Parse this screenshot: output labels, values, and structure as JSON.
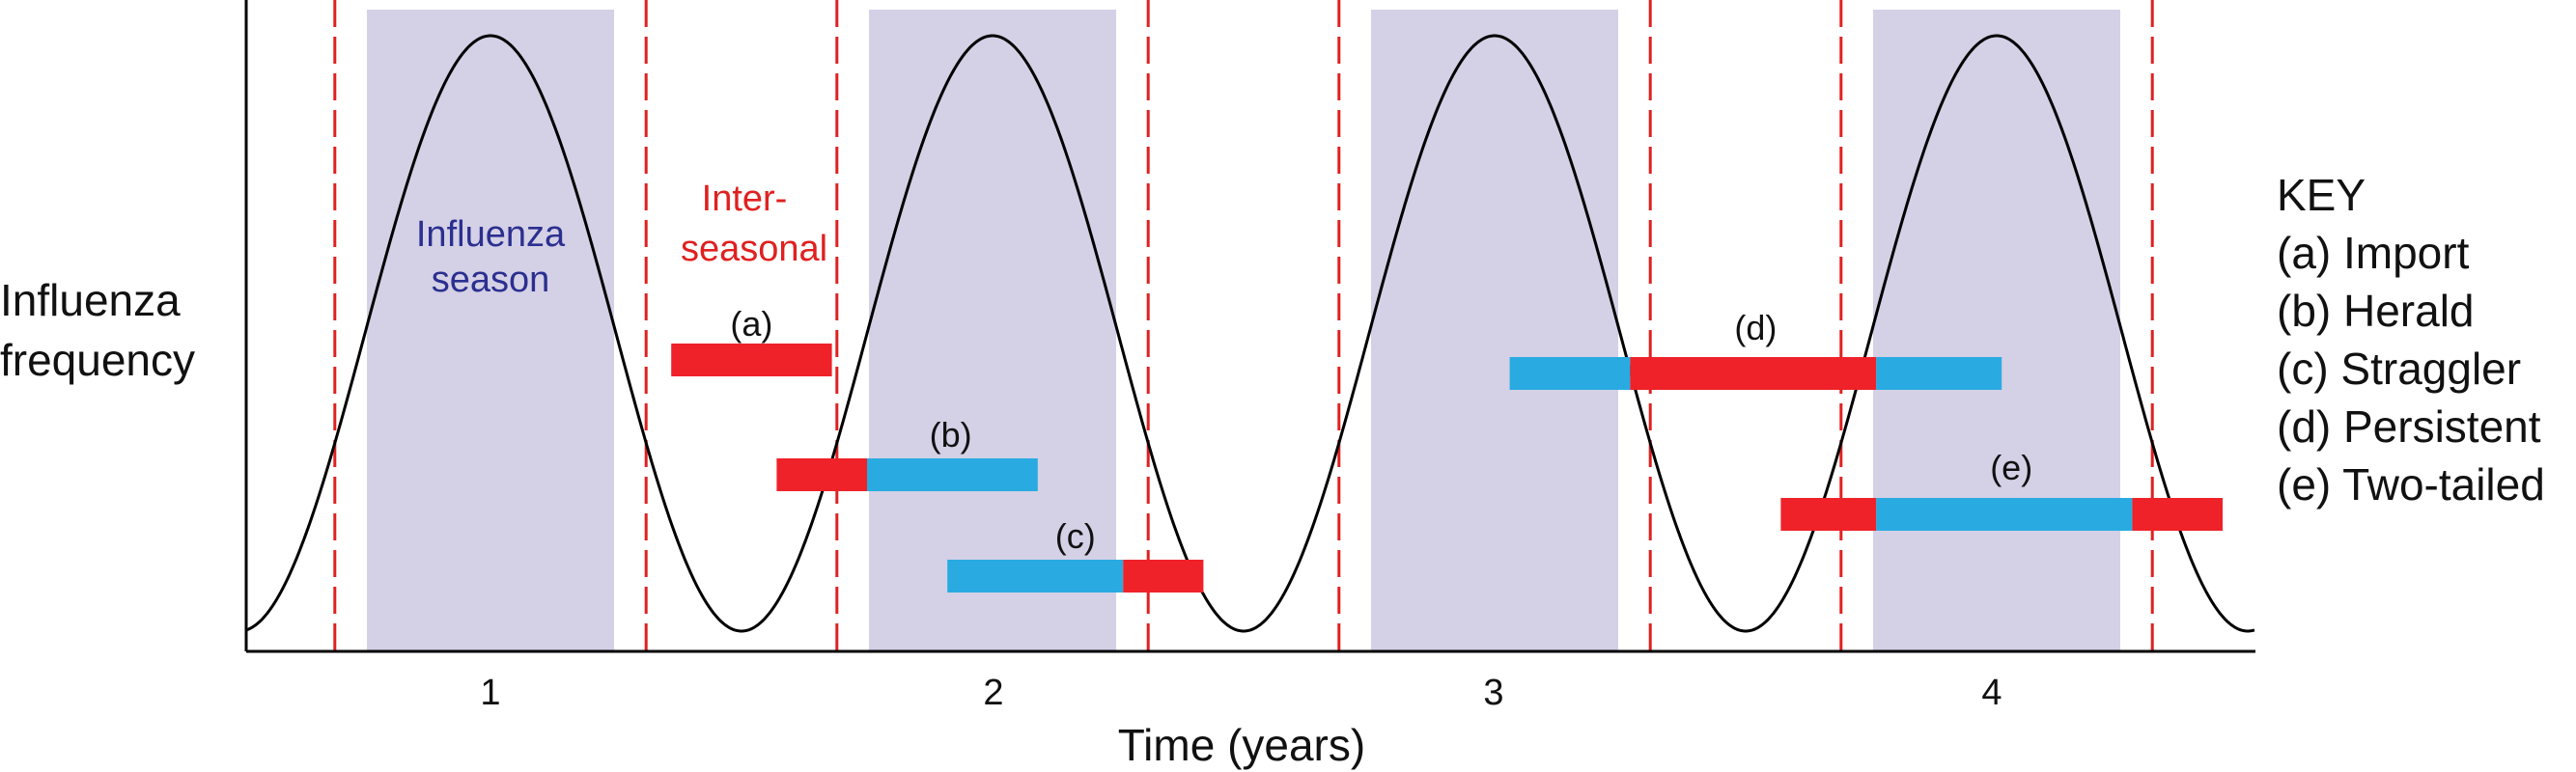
{
  "y_axis_label": [
    "Influenza",
    "frequency"
  ],
  "x_axis_label": "Time (years)",
  "x_ticks": [
    "1",
    "2",
    "3",
    "4"
  ],
  "season_label": [
    "Influenza",
    "season"
  ],
  "interseasonal_label": [
    "Inter-",
    "seasonal"
  ],
  "key": {
    "title": "KEY",
    "items": [
      "(a) Import",
      "(b) Herald",
      "(c) Straggler",
      "(d) Persistent",
      "(e) Two-tailed"
    ]
  },
  "bar_labels": [
    "(a)",
    "(b)",
    "(c)",
    "(d)",
    "(e)"
  ],
  "colors": {
    "season_shade": "#d4d0e6",
    "boundary_dash": "#e02020",
    "interseasonal_bar": "#ee2228",
    "season_bar": "#29abe2",
    "curve": "#000000",
    "season_text": "#2b2f8f",
    "interseasonal_text": "#e02020"
  },
  "seasons_years": [
    [
      0.75,
      1.25
    ],
    [
      1.75,
      2.25
    ],
    [
      2.75,
      3.25
    ],
    [
      3.75,
      4.25
    ]
  ],
  "boundaries_years": [
    0.69,
    1.31,
    1.69,
    2.31,
    2.69,
    3.31,
    3.69,
    4.31
  ],
  "bars": [
    {
      "label": "(a)",
      "segments": [
        {
          "kind": "interseasonal",
          "from": 1.36,
          "to": 1.68
        }
      ]
    },
    {
      "label": "(b)",
      "segments": [
        {
          "kind": "interseasonal",
          "from": 1.57,
          "to": 1.75
        },
        {
          "kind": "season",
          "from": 1.75,
          "to": 2.09
        }
      ]
    },
    {
      "label": "(c)",
      "segments": [
        {
          "kind": "season",
          "from": 1.91,
          "to": 2.26
        },
        {
          "kind": "interseasonal",
          "from": 2.26,
          "to": 2.42
        }
      ]
    },
    {
      "label": "(d)",
      "segments": [
        {
          "kind": "season",
          "from": 3.03,
          "to": 3.27
        },
        {
          "kind": "interseasonal",
          "from": 3.27,
          "to": 3.76
        },
        {
          "kind": "season",
          "from": 3.76,
          "to": 4.01
        }
      ]
    },
    {
      "label": "(e)",
      "segments": [
        {
          "kind": "interseasonal",
          "from": 3.57,
          "to": 3.76
        },
        {
          "kind": "season",
          "from": 3.76,
          "to": 4.27
        },
        {
          "kind": "interseasonal",
          "from": 4.27,
          "to": 4.45
        }
      ]
    }
  ]
}
